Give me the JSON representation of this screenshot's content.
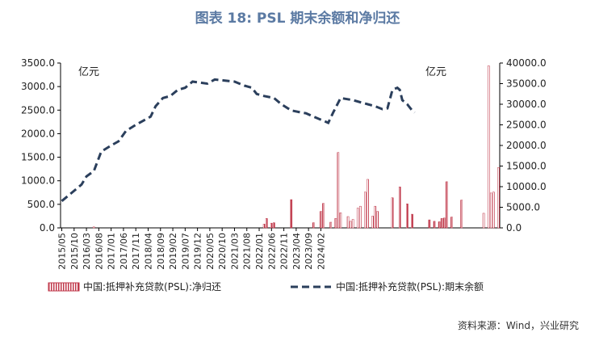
{
  "title": "图表 18: PSL 期末余额和净归还",
  "source": "资料来源：Wind，兴业研究",
  "chart_data": {
    "type": "bar+line",
    "left_axis": {
      "unit_label": "亿元",
      "ylim": [
        0,
        3500
      ],
      "ticks": [
        "0.0",
        "500.0",
        "1000.0",
        "1500.0",
        "2000.0",
        "2500.0",
        "3000.0",
        "3500.0"
      ]
    },
    "right_axis": {
      "unit_label": "亿元",
      "ylim": [
        0,
        40000
      ],
      "ticks": [
        "0.0",
        "5000.0",
        "10000.0",
        "15000.0",
        "20000.0",
        "25000.0",
        "30000.0",
        "35000.0",
        "40000.0"
      ]
    },
    "x_tick_labels": [
      "2015/05",
      "2015/10",
      "2016/03",
      "2016/08",
      "2017/01",
      "2017/06",
      "2017/11",
      "2018/04",
      "2018/09",
      "2019/02",
      "2019/07",
      "2019/12",
      "2020/05",
      "2020/10",
      "2021/03",
      "2021/08",
      "2022/01",
      "2022/06",
      "2022/11",
      "2023/04",
      "2023/09",
      "2024/02"
    ],
    "start_month": "2015/05",
    "bar_series": {
      "name": "中国:抵押补充贷款(PSL):净归还",
      "color": "#c0394b",
      "values": [
        0,
        0,
        0,
        0,
        0,
        0,
        0,
        0,
        0,
        0,
        0,
        0,
        0,
        20,
        0,
        0,
        0,
        0,
        0,
        0,
        0,
        0,
        0,
        0,
        0,
        0,
        0,
        0,
        0,
        0,
        0,
        0,
        0,
        0,
        0,
        0,
        0,
        0,
        0,
        0,
        0,
        0,
        0,
        0,
        0,
        0,
        0,
        0,
        0,
        0,
        0,
        0,
        0,
        0,
        0,
        0,
        0,
        0,
        0,
        0,
        0,
        0,
        0,
        0,
        0,
        0,
        0,
        0,
        0,
        0,
        0,
        0,
        0,
        0,
        0,
        0,
        0,
        0,
        0,
        0,
        0,
        0,
        80,
        200,
        0,
        100,
        110,
        0,
        0,
        0,
        0,
        0,
        0,
        600,
        0,
        0,
        0,
        0,
        0,
        0,
        0,
        0,
        110,
        0,
        0,
        350,
        520,
        0,
        0,
        120,
        0,
        200,
        1600,
        320,
        0,
        0,
        240,
        140,
        180,
        0,
        420,
        460,
        0,
        760,
        1030,
        0,
        250,
        460,
        350,
        0,
        0,
        0,
        0,
        0,
        640,
        0,
        0,
        870,
        0,
        0,
        510,
        0,
        290,
        0,
        0,
        0,
        0,
        0,
        0,
        170,
        0,
        140,
        0,
        130,
        200,
        210,
        980,
        0,
        230,
        0,
        0,
        0,
        590,
        0,
        0,
        0,
        0,
        0,
        0,
        0,
        0,
        310,
        0,
        3440,
        740,
        760,
        0,
        1280
      ]
    },
    "line_series": {
      "name": "中国:抵押补充贷款(PSL):期末余额",
      "color": "#2b3f5c",
      "anchors": [
        [
          0,
          6500
        ],
        [
          5,
          9000
        ],
        [
          8,
          10500
        ],
        [
          10,
          12500
        ],
        [
          13,
          13800
        ],
        [
          16,
          18500
        ],
        [
          20,
          20000
        ],
        [
          23,
          21000
        ],
        [
          26,
          23500
        ],
        [
          30,
          25000
        ],
        [
          33,
          26000
        ],
        [
          36,
          27000
        ],
        [
          38,
          29500
        ],
        [
          41,
          31500
        ],
        [
          44,
          32000
        ],
        [
          47,
          33500
        ],
        [
          50,
          34000
        ],
        [
          53,
          35500
        ],
        [
          59,
          35000
        ],
        [
          62,
          36000
        ],
        [
          70,
          35500
        ],
        [
          74,
          34500
        ],
        [
          77,
          34000
        ],
        [
          79,
          32500
        ],
        [
          82,
          32000
        ],
        [
          86,
          31500
        ],
        [
          89,
          30000
        ],
        [
          93,
          28500
        ],
        [
          97,
          28000
        ],
        [
          99,
          27800
        ],
        [
          102,
          27000
        ],
        [
          106,
          26000
        ],
        [
          108,
          25500
        ],
        [
          110,
          28000
        ],
        [
          113,
          31500
        ],
        [
          118,
          31000
        ],
        [
          121,
          30500
        ],
        [
          124,
          30000
        ],
        [
          127,
          29500
        ],
        [
          130,
          28800
        ],
        [
          132,
          29000
        ],
        [
          134,
          33500
        ],
        [
          136,
          34000
        ],
        [
          137,
          33500
        ],
        [
          138,
          31000
        ],
        [
          140,
          30000
        ],
        [
          142,
          28500
        ],
        [
          143,
          28000
        ]
      ]
    },
    "legend_position": "bottom"
  }
}
